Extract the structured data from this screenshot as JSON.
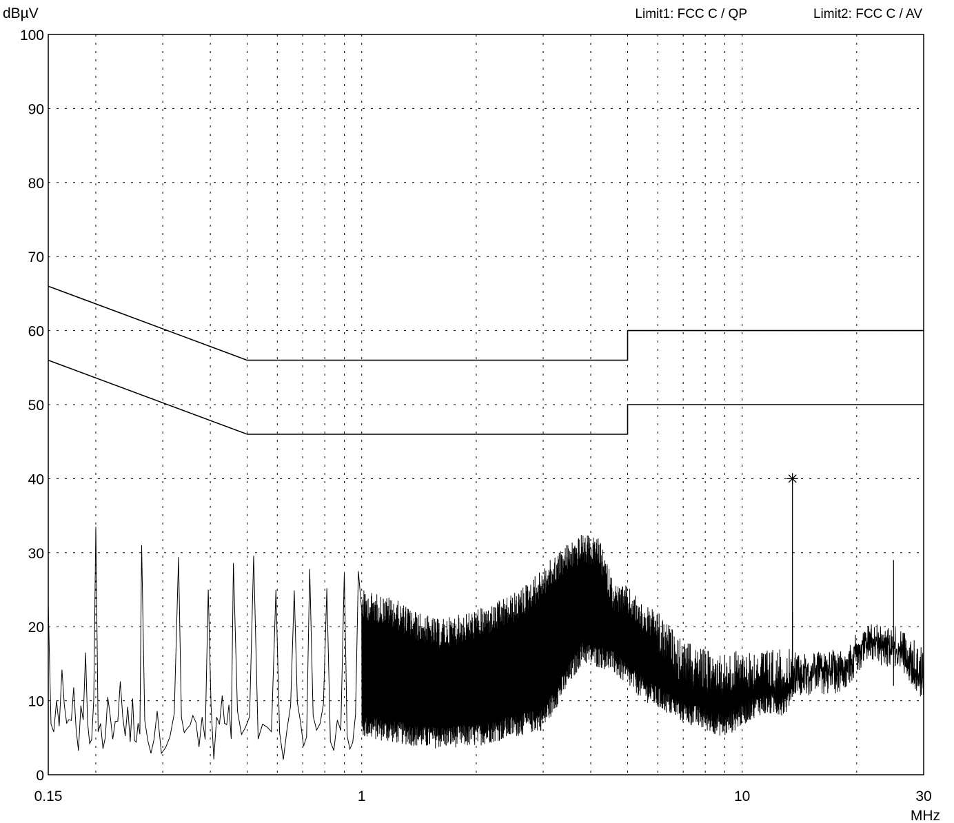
{
  "chart_data": {
    "type": "line",
    "y_unit": "dBµV",
    "x_unit": "MHz",
    "x_scale": "log",
    "xlim": [
      0.15,
      30
    ],
    "ylim": [
      0,
      100
    ],
    "grid": true,
    "y_ticks": [
      0,
      10,
      20,
      30,
      40,
      50,
      60,
      70,
      80,
      90,
      100
    ],
    "y_tick_labels": [
      "0",
      "10",
      "20",
      "30",
      "40",
      "50",
      "60",
      "70",
      "80",
      "90",
      "100"
    ],
    "x_tick_values": [
      0.15,
      1,
      10,
      30
    ],
    "x_tick_labels": [
      "0.15",
      "1",
      "10",
      "30"
    ],
    "x_grid_values": [
      0.2,
      0.3,
      0.4,
      0.5,
      0.6,
      0.7,
      0.8,
      0.9,
      1,
      2,
      3,
      4,
      5,
      6,
      7,
      8,
      9,
      10,
      20
    ],
    "legend": [
      "Limit1: FCC C / QP",
      "Limit2: FCC C / AV"
    ],
    "limit_lines": [
      {
        "points": [
          [
            0.15,
            66
          ],
          [
            0.5,
            56
          ],
          [
            5,
            56
          ],
          [
            5,
            60
          ],
          [
            30,
            60
          ]
        ]
      },
      {
        "points": [
          [
            0.15,
            56
          ],
          [
            0.5,
            46
          ],
          [
            5,
            46
          ],
          [
            5,
            50
          ],
          [
            30,
            50
          ]
        ]
      }
    ],
    "marker": {
      "x": 13.56,
      "y": 40
    },
    "spectrum_features": {
      "low_band_peaks": [
        [
          0.15,
          23
        ],
        [
          0.163,
          14.2
        ],
        [
          0.175,
          11.8
        ],
        [
          0.188,
          16.5
        ],
        [
          0.2,
          33.5
        ],
        [
          0.215,
          10.5
        ],
        [
          0.232,
          12.6
        ],
        [
          0.25,
          10.3
        ],
        [
          0.264,
          31
        ],
        [
          0.29,
          8.6
        ],
        [
          0.33,
          29.4
        ],
        [
          0.36,
          8
        ],
        [
          0.395,
          25
        ],
        [
          0.43,
          10.7
        ],
        [
          0.46,
          28.6
        ],
        [
          0.52,
          29.6
        ],
        [
          0.595,
          25
        ],
        [
          0.665,
          24.9
        ],
        [
          0.73,
          27.8
        ],
        [
          0.81,
          25.2
        ],
        [
          0.9,
          27.4
        ],
        [
          0.98,
          27.5
        ]
      ],
      "mid_band_envelope": [
        [
          1.0,
          25
        ],
        [
          1.2,
          24
        ],
        [
          1.4,
          22
        ],
        [
          1.6,
          21
        ],
        [
          1.9,
          22
        ],
        [
          2.2,
          23
        ],
        [
          2.6,
          25
        ],
        [
          3.0,
          28
        ],
        [
          3.4,
          31
        ],
        [
          3.8,
          32.5
        ],
        [
          4.2,
          32
        ],
        [
          4.6,
          26
        ],
        [
          5.0,
          25.5
        ],
        [
          5.5,
          23
        ],
        [
          6.0,
          22
        ],
        [
          7.0,
          18
        ],
        [
          8.0,
          17
        ],
        [
          9.0,
          16.5
        ],
        [
          10.0,
          17
        ],
        [
          12.0,
          17
        ],
        [
          13.5,
          17
        ],
        [
          15.0,
          16.5
        ],
        [
          18.0,
          17
        ],
        [
          22.0,
          21
        ],
        [
          26.0,
          20
        ],
        [
          30.0,
          17
        ]
      ],
      "floor": [
        [
          1.0,
          5
        ],
        [
          1.5,
          3.5
        ],
        [
          2.0,
          3.8
        ],
        [
          3.0,
          6
        ],
        [
          3.8,
          15
        ],
        [
          4.5,
          14
        ],
        [
          5.5,
          10
        ],
        [
          7.0,
          7
        ],
        [
          9.0,
          5
        ],
        [
          11.0,
          8
        ],
        [
          13.0,
          8
        ],
        [
          14.0,
          12
        ],
        [
          18.0,
          13
        ],
        [
          22.0,
          16
        ],
        [
          25.0,
          16
        ],
        [
          28.0,
          12
        ],
        [
          30.0,
          10
        ]
      ],
      "narrow_spikes": [
        [
          13.56,
          40
        ],
        [
          25.0,
          29
        ],
        [
          13.56,
          22
        ]
      ]
    }
  }
}
